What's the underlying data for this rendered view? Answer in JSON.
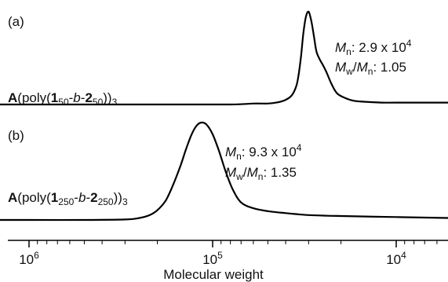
{
  "chart_data": [
    {
      "type": "line",
      "panel_label": "(a)",
      "x_scale": "log",
      "x_reversed": true,
      "xlim": [
        1000000,
        5000
      ],
      "sample_label": {
        "prefix": "A",
        "open": "(poly(",
        "n1": "1",
        "s1": "50",
        "mid": "-",
        "b": "b",
        "dash": "-",
        "n2": "2",
        "s2": "50",
        "close": "))",
        "s3": "3"
      },
      "annotations": {
        "mn": {
          "sym": "M",
          "sub": "n",
          "text": ": 2.9 x 10",
          "sup": "4"
        },
        "pdi": {
          "sym1": "M",
          "sub1": "w",
          "slash": "/",
          "sym2": "M",
          "sub2": "n",
          "text": ": 1.05"
        }
      },
      "series": [
        {
          "x": [
            1000000,
            200000,
            80000,
            60000,
            50000,
            45000,
            40000,
            37000,
            35000,
            34000,
            33000,
            32000,
            31000,
            30000,
            29000,
            28000,
            27500,
            27000,
            26000,
            25000,
            24000,
            22500,
            21000,
            19000,
            17000,
            15000,
            12000,
            10000,
            5000
          ],
          "y": [
            0.0,
            0.0,
            0.0,
            0.01,
            0.01,
            0.02,
            0.05,
            0.1,
            0.2,
            0.32,
            0.52,
            0.78,
            0.95,
            1.0,
            0.9,
            0.72,
            0.62,
            0.55,
            0.48,
            0.42,
            0.35,
            0.22,
            0.12,
            0.07,
            0.04,
            0.03,
            0.02,
            0.02,
            0.02
          ]
        }
      ]
    },
    {
      "type": "line",
      "panel_label": "(b)",
      "x_scale": "log",
      "x_reversed": true,
      "xlim": [
        1000000,
        5000
      ],
      "sample_label": {
        "prefix": "A",
        "open": "(poly(",
        "n1": "1",
        "s1": "250",
        "mid": "-",
        "b": "b",
        "dash": "-",
        "n2": "2",
        "s2": "250",
        "close": "))",
        "s3": "3"
      },
      "annotations": {
        "mn": {
          "sym": "M",
          "sub": "n",
          "text": ": 9.3 x 10",
          "sup": "4"
        },
        "pdi": {
          "sym1": "M",
          "sub1": "w",
          "slash": "/",
          "sym2": "M",
          "sub2": "n",
          "text": ": 1.35"
        }
      },
      "series": [
        {
          "x": [
            1000000,
            500000,
            300000,
            250000,
            220000,
            200000,
            180000,
            165000,
            150000,
            140000,
            130000,
            122000,
            115000,
            108000,
            100000,
            92000,
            85000,
            78000,
            70000,
            60000,
            50000,
            40000,
            30000,
            20000,
            10000,
            5000
          ],
          "y": [
            0.0,
            0.0,
            0.005,
            0.02,
            0.05,
            0.1,
            0.2,
            0.35,
            0.55,
            0.72,
            0.88,
            0.97,
            1.0,
            0.98,
            0.88,
            0.7,
            0.5,
            0.32,
            0.18,
            0.12,
            0.09,
            0.07,
            0.05,
            0.04,
            0.03,
            0.02
          ]
        }
      ]
    }
  ],
  "x_axis": {
    "xlabel": "Molecular weight",
    "ticks": [
      {
        "value": 1000000,
        "base": "10",
        "exp": "6"
      },
      {
        "value": 100000,
        "base": "10",
        "exp": "5"
      },
      {
        "value": 10000,
        "base": "10",
        "exp": "4"
      }
    ]
  }
}
